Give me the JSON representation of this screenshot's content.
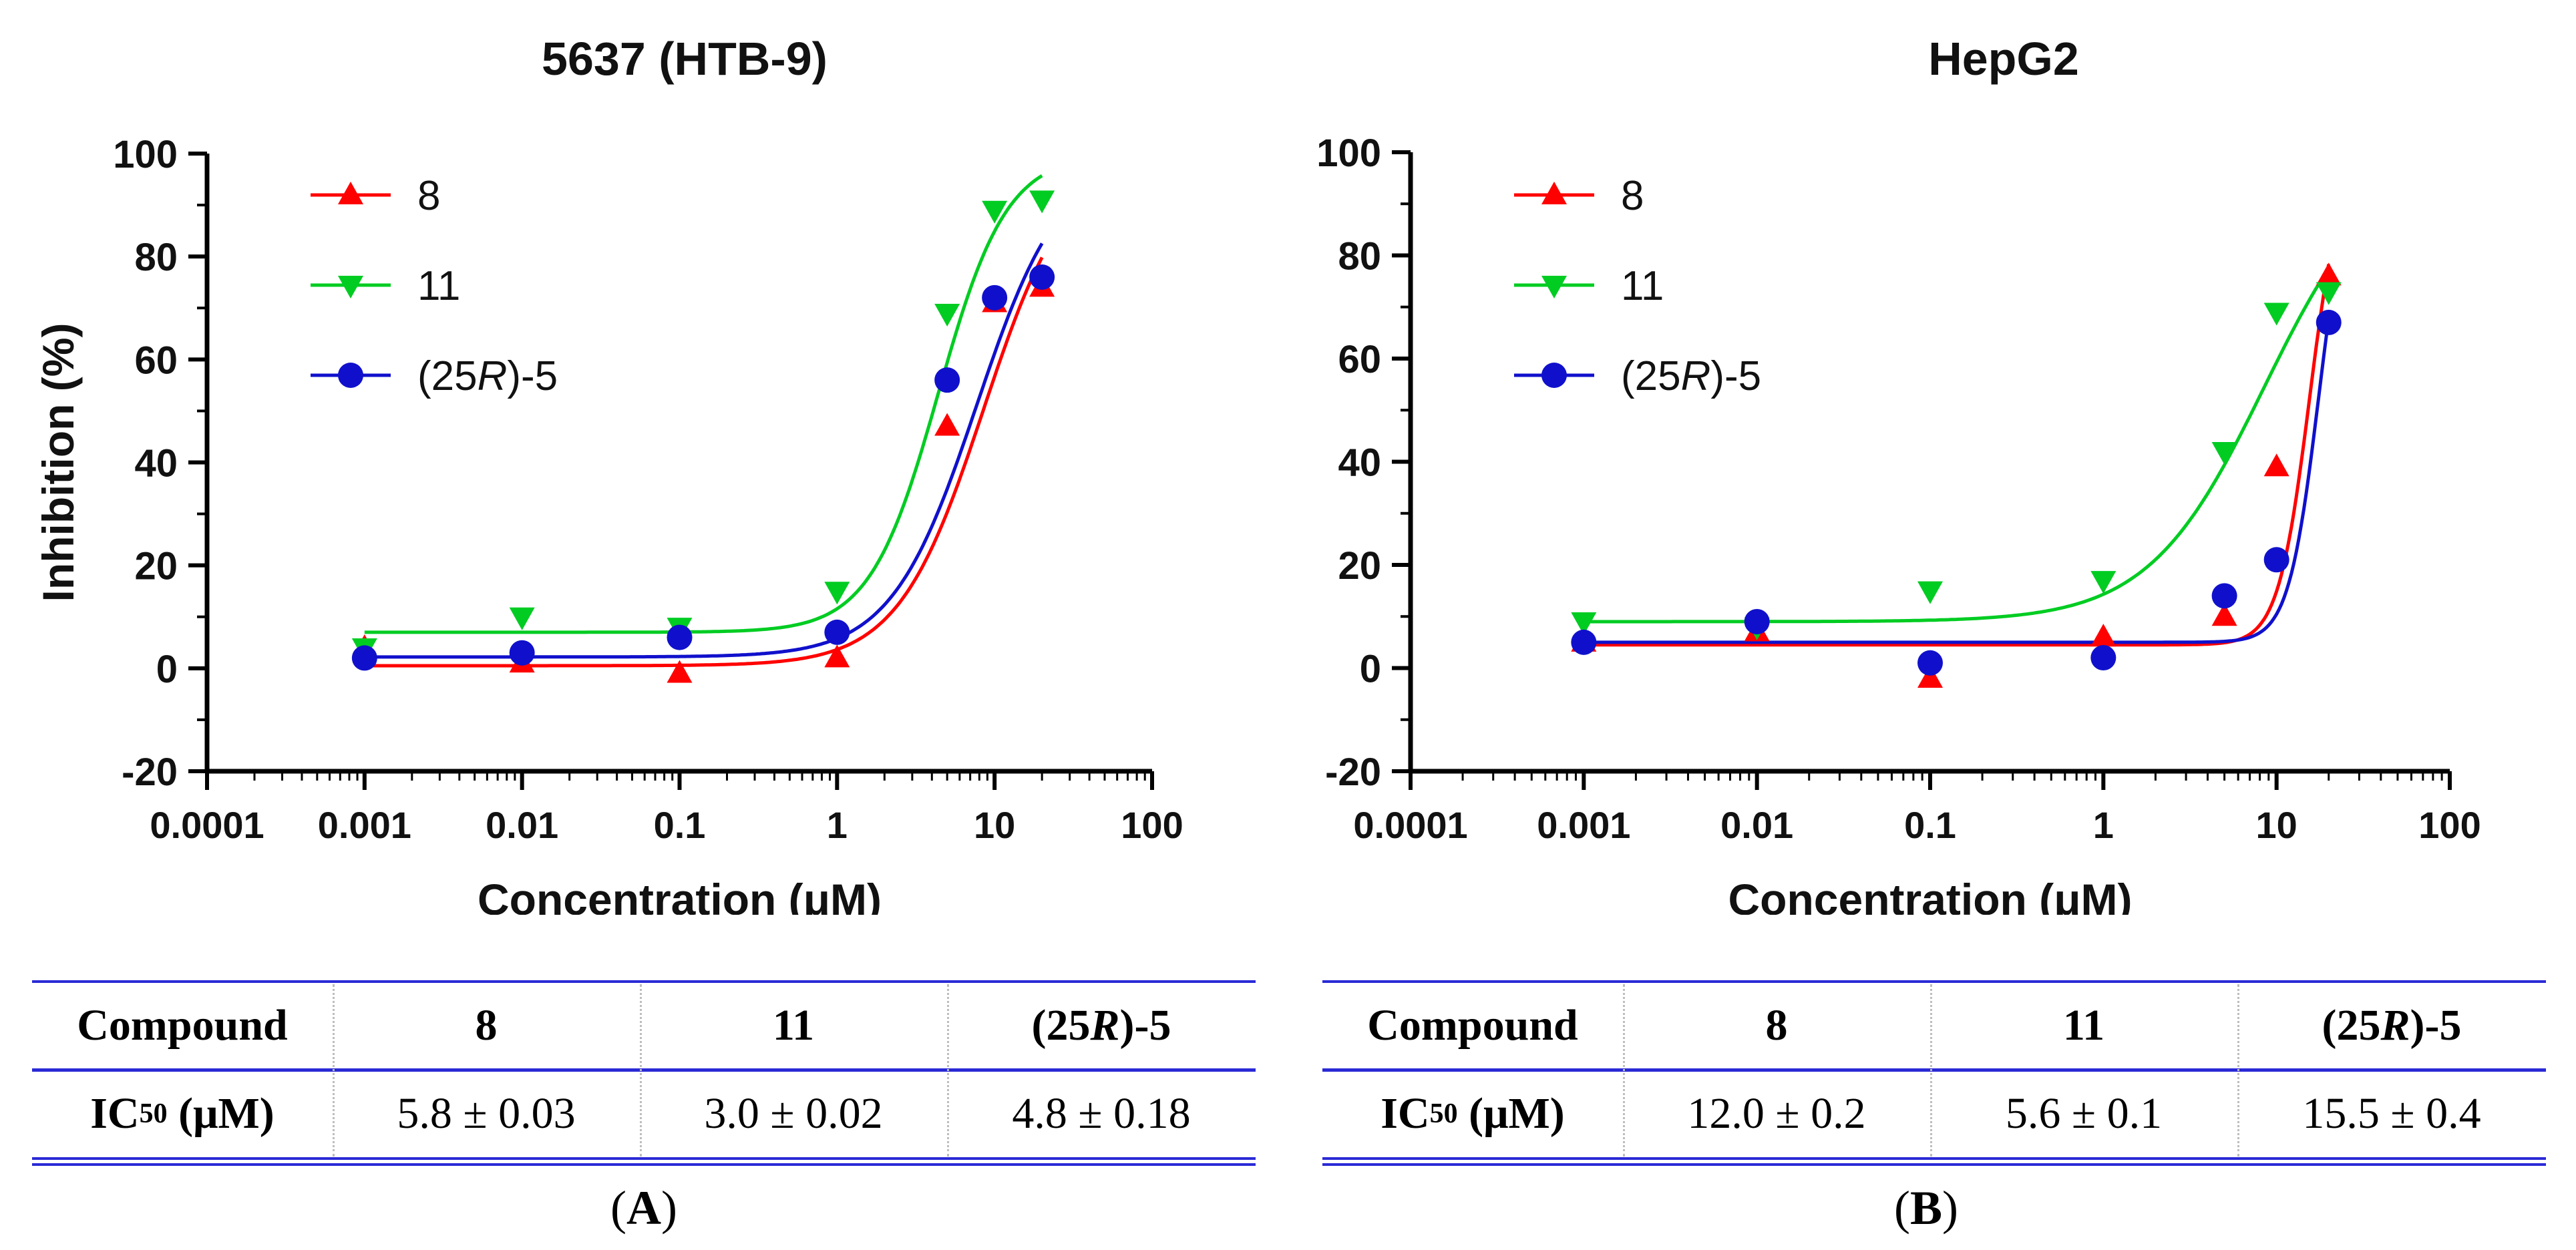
{
  "chart_data": [
    {
      "type": "scatter",
      "title": "5637 (HTB-9)",
      "xlabel": "Concentration (μM)",
      "ylabel": "Inhibition (%)",
      "xscale": "log",
      "xlim": [
        0.0001,
        100
      ],
      "ylim": [
        -20,
        100
      ],
      "x_ticks": [
        "0.0001",
        "0.001",
        "0.01",
        "0.1",
        "1",
        "10",
        "100"
      ],
      "y_ticks": [
        "-20",
        "0",
        "20",
        "40",
        "60",
        "80",
        "100"
      ],
      "legend_position": "top-left",
      "series": [
        {
          "name": "8",
          "color": "#ff0000",
          "marker": "triangle-up",
          "x": [
            0.001,
            0.01,
            0.1,
            1,
            5,
            10,
            20
          ],
          "y": [
            4,
            1,
            -1,
            2,
            47,
            71,
            74
          ],
          "fit": {
            "bottom": 0.5,
            "top": 100,
            "ec50": 8.5,
            "hill": 1.6
          }
        },
        {
          "name": "11",
          "color": "#00cc22",
          "marker": "triangle-down",
          "x": [
            0.001,
            0.01,
            0.1,
            1,
            5,
            10,
            20
          ],
          "y": [
            4,
            10,
            8,
            15,
            69,
            89,
            91
          ],
          "fit": {
            "bottom": 7,
            "top": 100,
            "ec50": 4.4,
            "hill": 2.0
          }
        },
        {
          "name": "(25R)-5",
          "color": "#1010cc",
          "marker": "circle",
          "x": [
            0.001,
            0.01,
            0.1,
            1,
            5,
            10,
            20
          ],
          "y": [
            2,
            3,
            6,
            7,
            56,
            72,
            76
          ],
          "fit": {
            "bottom": 2.2,
            "top": 100,
            "ec50": 7.7,
            "hill": 1.6
          }
        }
      ]
    },
    {
      "type": "scatter",
      "title": "HepG2",
      "xlabel": "Concentration (μM)",
      "ylabel": "Inhibition (%)",
      "xscale": "log",
      "xlim": [
        0.0001,
        100
      ],
      "ylim": [
        -20,
        100
      ],
      "x_ticks": [
        "0.0001",
        "0.001",
        "0.01",
        "0.1",
        "1",
        "10",
        "100"
      ],
      "y_ticks": [
        "-20",
        "0",
        "20",
        "40",
        "60",
        "80",
        "100"
      ],
      "legend_position": "top-left",
      "series": [
        {
          "name": "8",
          "color": "#ff0000",
          "marker": "triangle-up",
          "x": [
            0.001,
            0.01,
            0.1,
            1,
            5,
            10,
            20
          ],
          "y": [
            5,
            7,
            -2,
            6,
            10,
            39,
            76
          ],
          "fit": {
            "bottom": 4.5,
            "top": 100,
            "ec50": 15.5,
            "hill": 4.8
          }
        },
        {
          "name": "11",
          "color": "#00cc22",
          "marker": "triangle-down",
          "x": [
            0.001,
            0.01,
            0.1,
            1,
            5,
            10,
            20
          ],
          "y": [
            9,
            8,
            15,
            17,
            42,
            69,
            73
          ],
          "fit": {
            "bottom": 9,
            "top": 100,
            "ec50": 8.5,
            "hill": 1.3
          }
        },
        {
          "name": "(25R)-5",
          "color": "#1010cc",
          "marker": "circle",
          "x": [
            0.001,
            0.01,
            0.1,
            1,
            5,
            10,
            20
          ],
          "y": [
            5,
            9,
            1,
            2,
            14,
            21,
            67
          ],
          "fit": {
            "bottom": 5,
            "top": 100,
            "ec50": 17.5,
            "hill": 5.0
          }
        }
      ]
    }
  ],
  "tables": [
    {
      "header": [
        "Compound",
        "8",
        "11",
        "(25R)-5"
      ],
      "row_label": "IC50 (μM)",
      "values": [
        "5.8 ± 0.03",
        "3.0 ± 0.02",
        "4.8 ± 0.18"
      ]
    },
    {
      "header": [
        "Compound",
        "8",
        "11",
        "(25R)-5"
      ],
      "row_label": "IC50 (μM)",
      "values": [
        "12.0 ± 0.2",
        "5.6 ± 0.1",
        "15.5 ± 0.4"
      ]
    }
  ],
  "panel_labels": [
    "A",
    "B"
  ]
}
